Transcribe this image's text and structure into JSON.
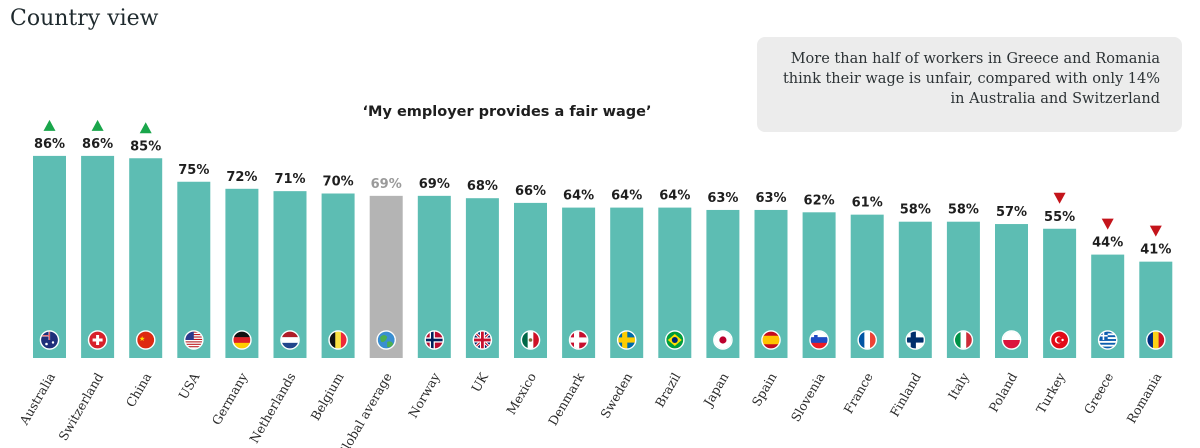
{
  "page": {
    "heading": "Country view",
    "callout": [
      "More than half of workers in Greece and Romania",
      "think their wage is unfair, compared with only 14%",
      "in Australia and Switzerland"
    ]
  },
  "chart_data": {
    "type": "bar",
    "title": "‘My employer provides a fair wage’",
    "xlabel": "",
    "ylabel": "",
    "ylim": [
      0,
      100
    ],
    "grid": false,
    "value_suffix": "%",
    "colors": {
      "bar": "#5dbdb3",
      "average": "#b4b4b4",
      "up": "#1aa64b",
      "down": "#c4141b",
      "value_label": "#1e1e1e",
      "average_label": "#9a9a9a"
    },
    "categories": [
      "Australia",
      "Switzerland",
      "China",
      "USA",
      "Germany",
      "Netherlands",
      "Belgium",
      "Global average",
      "Norway",
      "UK",
      "Mexico",
      "Denmark",
      "Sweden",
      "Brazil",
      "Japan",
      "Spain",
      "Slovenia",
      "France",
      "Finland",
      "Italy",
      "Poland",
      "Turkey",
      "Greece",
      "Romania"
    ],
    "values": [
      86,
      86,
      85,
      75,
      72,
      71,
      70,
      69,
      69,
      68,
      66,
      64,
      64,
      64,
      63,
      63,
      62,
      61,
      58,
      58,
      57,
      55,
      44,
      41
    ],
    "highlight": "Global average",
    "markers": {
      "Australia": "up",
      "Switzerland": "up",
      "China": "up",
      "Turkey": "down",
      "Greece": "down",
      "Romania": "down"
    },
    "flag_icons": [
      "australia-flag-icon",
      "switzerland-flag-icon",
      "china-flag-icon",
      "usa-flag-icon",
      "germany-flag-icon",
      "netherlands-flag-icon",
      "belgium-flag-icon",
      "globe-icon",
      "norway-flag-icon",
      "uk-flag-icon",
      "mexico-flag-icon",
      "denmark-flag-icon",
      "sweden-flag-icon",
      "brazil-flag-icon",
      "japan-flag-icon",
      "spain-flag-icon",
      "slovenia-flag-icon",
      "france-flag-icon",
      "finland-flag-icon",
      "italy-flag-icon",
      "poland-flag-icon",
      "turkey-flag-icon",
      "greece-flag-icon",
      "romania-flag-icon"
    ]
  }
}
